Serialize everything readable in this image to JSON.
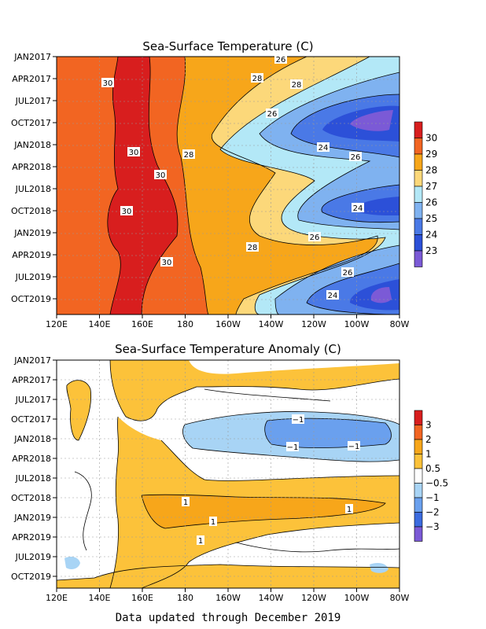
{
  "chart_data": [
    {
      "type": "heatmap",
      "title": "Sea-Surface Temperature (C)",
      "x_ticks": [
        "120E",
        "140E",
        "160E",
        "180",
        "160W",
        "140W",
        "120W",
        "100W",
        "80W"
      ],
      "y_ticks": [
        "JAN2017",
        "APR2017",
        "JUL2017",
        "OCT2017",
        "JAN2018",
        "APR2018",
        "JUL2018",
        "OCT2018",
        "JAN2019",
        "APR2019",
        "JUL2019",
        "OCT2019"
      ],
      "colorbar": {
        "labels": [
          "30",
          "29",
          "28",
          "27",
          "26",
          "25",
          "24",
          "23"
        ],
        "colors": [
          "#d81e1e",
          "#f26522",
          "#f7a61a",
          "#fcd87a",
          "#b3e8f7",
          "#7fb2f0",
          "#4a79e6",
          "#2c50d8",
          "#7b5ad6"
        ]
      },
      "contour_labels": [
        "30",
        "30",
        "30",
        "30",
        "30",
        "28",
        "28",
        "28",
        "28",
        "26",
        "26",
        "26",
        "26",
        "24",
        "24",
        "24",
        "26"
      ],
      "grid": true
    },
    {
      "type": "heatmap",
      "title": "Sea-Surface Temperature Anomaly (C)",
      "x_ticks": [
        "120E",
        "140E",
        "160E",
        "180",
        "160W",
        "140W",
        "120W",
        "100W",
        "80W"
      ],
      "y_ticks": [
        "JAN2017",
        "APR2017",
        "JUL2017",
        "OCT2017",
        "JAN2018",
        "APR2018",
        "JUL2018",
        "OCT2018",
        "JAN2019",
        "APR2019",
        "JUL2019",
        "OCT2019"
      ],
      "colorbar": {
        "labels": [
          "3",
          "2",
          "1",
          "0.5",
          "−0.5",
          "−1",
          "−2",
          "−3"
        ],
        "colors": [
          "#d81e1e",
          "#f26522",
          "#f7a61a",
          "#fcc23a",
          "#ffffff",
          "#a8d4f5",
          "#6aa0ee",
          "#3b6bdf",
          "#7b5ad6"
        ]
      },
      "contour_labels": [
        "−1",
        "−1",
        "−1",
        "1",
        "1",
        "1",
        "1"
      ],
      "grid": true
    }
  ],
  "footer": "Data updated through December 2019"
}
